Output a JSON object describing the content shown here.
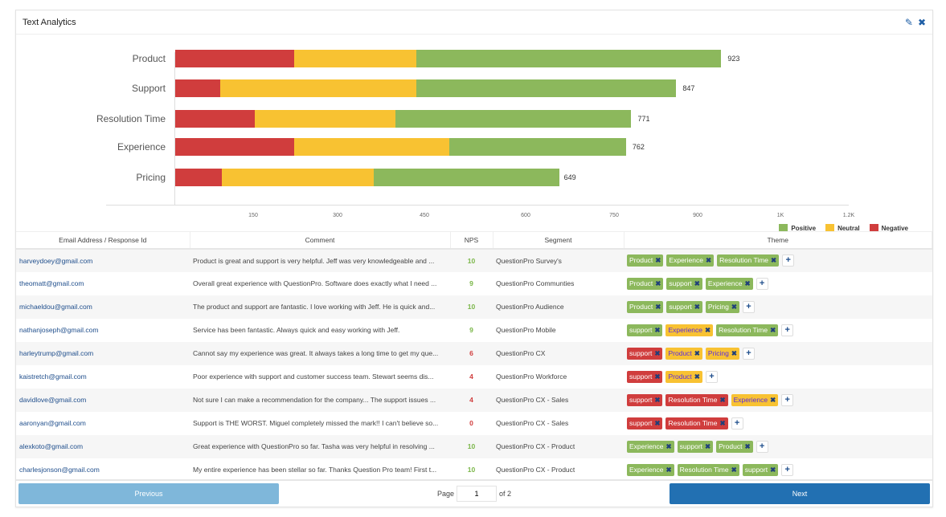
{
  "header": {
    "title": "Text Analytics",
    "edit_icon": "edit-icon",
    "close_icon": "close-icon"
  },
  "colors": {
    "positive": "#8cb85c",
    "neutral": "#f8c232",
    "negative": "#d03d3d",
    "prev_button": "#7fb7da",
    "next_button": "#2270b2"
  },
  "chart_data": {
    "type": "bar",
    "orientation": "horizontal",
    "stacked": true,
    "categories": [
      "Product",
      "Support",
      "Resolution Time",
      "Experience",
      "Pricing"
    ],
    "series": [
      {
        "name": "Negative",
        "values": [
          201,
          76,
          134,
          201,
          79
        ]
      },
      {
        "name": "Neutral",
        "values": [
          207,
          331,
          238,
          262,
          257
        ]
      },
      {
        "name": "Positive",
        "values": [
          515,
          440,
          399,
          299,
          313
        ]
      }
    ],
    "totals": [
      923,
      847,
      771,
      762,
      649
    ],
    "tick_labels": [
      "150",
      "300",
      "450",
      "600",
      "750",
      "900",
      "1K",
      "1.2K"
    ],
    "legend": [
      "Positive",
      "Neutral",
      "Negative"
    ],
    "legend_position": "bottom-right"
  },
  "table": {
    "columns": [
      "Email Address / Response Id",
      "Comment",
      "NPS",
      "Segment",
      "Theme"
    ],
    "rows": [
      {
        "email": "harveydoey@gmail.com",
        "comment": "Product is great and support is very helpful. Jeff was very knowledgeable and ...",
        "nps": "10",
        "segment": "QuestionPro Survey's",
        "themes": [
          [
            "Product",
            "positive"
          ],
          [
            "Experience",
            "positive"
          ],
          [
            "Resolution Time",
            "positive"
          ]
        ]
      },
      {
        "email": "theomatt@gmail.com",
        "comment": "Overall great experience with QuestionPro. Software does exactly what I need ...",
        "nps": "9",
        "segment": "QuestionPro Communties",
        "themes": [
          [
            "Product",
            "positive"
          ],
          [
            "support",
            "positive"
          ],
          [
            "Experience",
            "positive"
          ]
        ]
      },
      {
        "email": "michaeldou@gmail.com",
        "comment": "The product and support are fantastic. I love working with Jeff. He is quick and...",
        "nps": "10",
        "segment": "QuestionPro Audience",
        "themes": [
          [
            "Product",
            "positive"
          ],
          [
            "support",
            "positive"
          ],
          [
            "Pricing",
            "positive"
          ]
        ]
      },
      {
        "email": "nathanjoseph@gmail.com",
        "comment": "Service has been fantastic. Always quick and easy working with Jeff.",
        "nps": "9",
        "segment": "QuestionPro Mobile",
        "themes": [
          [
            "support",
            "positive"
          ],
          [
            "Experience",
            "neutral"
          ],
          [
            "Resolution Time",
            "positive"
          ]
        ]
      },
      {
        "email": "harleytrump@gmail.com",
        "comment": "Cannot say my experience was great. It always takes a long time to get my que...",
        "nps": "6",
        "segment": "QuestionPro CX",
        "themes": [
          [
            "support",
            "negative"
          ],
          [
            "Product",
            "neutral"
          ],
          [
            "Pricing",
            "neutral"
          ]
        ]
      },
      {
        "email": "kaistretch@gmail.com",
        "comment": "Poor experience with support and customer success team. Stewart seems dis...",
        "nps": "4",
        "segment": "QuestionPro Workforce",
        "themes": [
          [
            "support",
            "negative"
          ],
          [
            "Product",
            "neutral"
          ]
        ]
      },
      {
        "email": "davidlove@gmail.com",
        "comment": "Not sure I can make a recommendation for the company... The support issues ...",
        "nps": "4",
        "segment": "QuestionPro CX - Sales",
        "themes": [
          [
            "support",
            "negative"
          ],
          [
            "Resolution Time",
            "negative"
          ],
          [
            "Experience",
            "neutral"
          ]
        ]
      },
      {
        "email": "aaronyan@gmail.com",
        "comment": "Support is THE WORST. Miguel completely missed the mark!! I can't believe so...",
        "nps": "0",
        "segment": "QuestionPro CX - Sales",
        "themes": [
          [
            "support",
            "negative"
          ],
          [
            "Resolution Time",
            "negative"
          ]
        ]
      },
      {
        "email": "alexkoto@gmail.com",
        "comment": "Great experience with QuestionPro so far. Tasha was very helpful in resolving ...",
        "nps": "10",
        "segment": "QuestionPro CX - Product",
        "themes": [
          [
            "Experience",
            "positive"
          ],
          [
            "support",
            "positive"
          ],
          [
            "Product",
            "positive"
          ]
        ]
      },
      {
        "email": "charlesjonson@gmail.com",
        "comment": "My entire experience has been stellar so far. Thanks Question Pro team! First t...",
        "nps": "10",
        "segment": "QuestionPro CX - Product",
        "themes": [
          [
            "Experience",
            "positive"
          ],
          [
            "Resolution Time",
            "positive"
          ],
          [
            "support",
            "positive"
          ]
        ]
      }
    ]
  },
  "pagination": {
    "previous": "Previous",
    "next": "Next",
    "page_label": "Page",
    "page_value": "1",
    "of_label": "of 2"
  }
}
